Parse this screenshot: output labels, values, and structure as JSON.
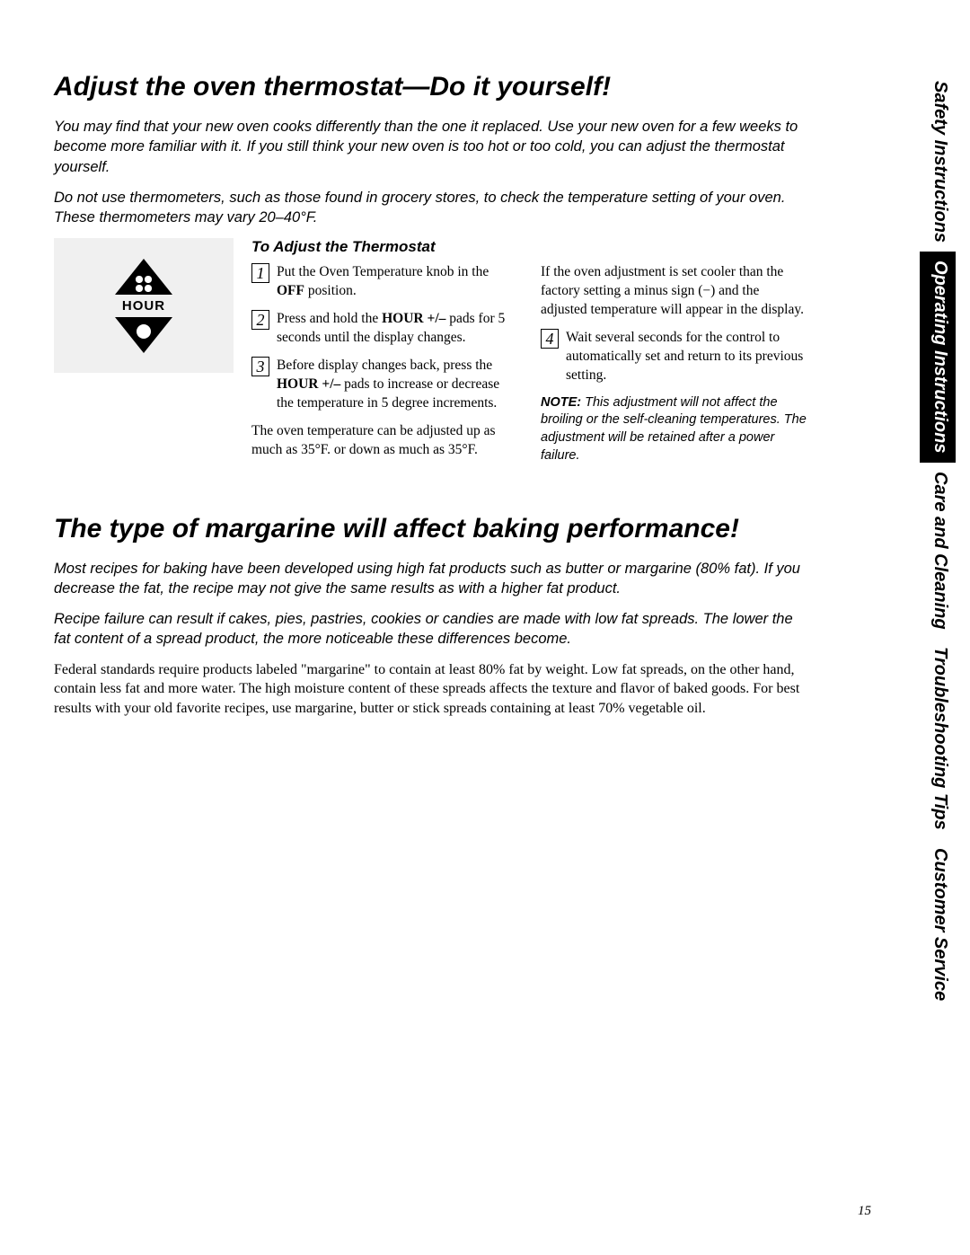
{
  "colors": {
    "background": "#ffffff",
    "text": "#000000",
    "tab_dark_bg": "#000000",
    "tab_dark_fg": "#ffffff",
    "graphic_bg": "#f0f0f0"
  },
  "typography": {
    "title_fontsize_pt": 22,
    "body_fontsize_pt": 12,
    "intro_fontsize_pt": 12,
    "tab_fontsize_pt": 15
  },
  "side_tabs": [
    {
      "label": "Safety Instructions",
      "style": "light"
    },
    {
      "label": "Operating Instructions",
      "style": "dark"
    },
    {
      "label": "Care and Cleaning",
      "style": "light"
    },
    {
      "label": "Troubleshooting Tips",
      "style": "light"
    },
    {
      "label": "Customer Service",
      "style": "light"
    }
  ],
  "section1": {
    "title": "Adjust the oven thermostat—Do it yourself!",
    "intro1": "You may find that your new oven cooks differently than the one it replaced. Use your new oven for a few weeks to become more familiar with it. If you still think your new oven is too hot or too cold, you can adjust the thermostat yourself.",
    "intro2": "Do not use thermometers, such as those found in grocery stores, to check the temperature setting of your oven. These thermometers may vary 20–40°F.",
    "subheading": "To Adjust the Thermostat",
    "hour_label": "HOUR",
    "steps": {
      "s1_a": "Put the Oven Temperature knob in the ",
      "s1_b": "OFF",
      "s1_c": " position.",
      "s2_a": "Press and hold the ",
      "s2_b": "HOUR +/–",
      "s2_c": " pads for 5 seconds until the display changes.",
      "s3_a": "Before display changes back, press the ",
      "s3_b": "HOUR +/–",
      "s3_c": " pads to increase or decrease the temperature in 5 degree increments.",
      "left_tail": "The oven temperature can be adjusted up as much as 35°F. or down as much as 35°F.",
      "right_lead": "If the oven adjustment is set cooler than the factory setting a minus sign (−) and the adjusted temperature will appear in the display.",
      "s4": "Wait several seconds for the control to automatically set and return to its previous setting."
    },
    "note_label": "NOTE:",
    "note_text": "This adjustment will not affect the broiling or the self-cleaning temperatures. The adjustment will be retained after a power failure."
  },
  "section2": {
    "title": "The type of margarine will affect baking performance!",
    "intro1": "Most recipes for baking have been developed using high fat products such as butter or margarine (80% fat). If you decrease the fat, the recipe may not give the same results as with a higher fat product.",
    "intro2": "Recipe failure can result if cakes, pies, pastries, cookies or candies are made with low fat spreads. The lower the fat content of a spread product, the more noticeable these differences become.",
    "body": "Federal standards require products labeled \"margarine\" to contain at least 80% fat by weight. Low fat spreads, on the other hand, contain less fat and more water. The high moisture content of these spreads affects the texture and flavor of baked goods. For best results with your old favorite recipes, use margarine, butter or stick spreads containing at least 70% vegetable oil."
  },
  "page_number": "15"
}
